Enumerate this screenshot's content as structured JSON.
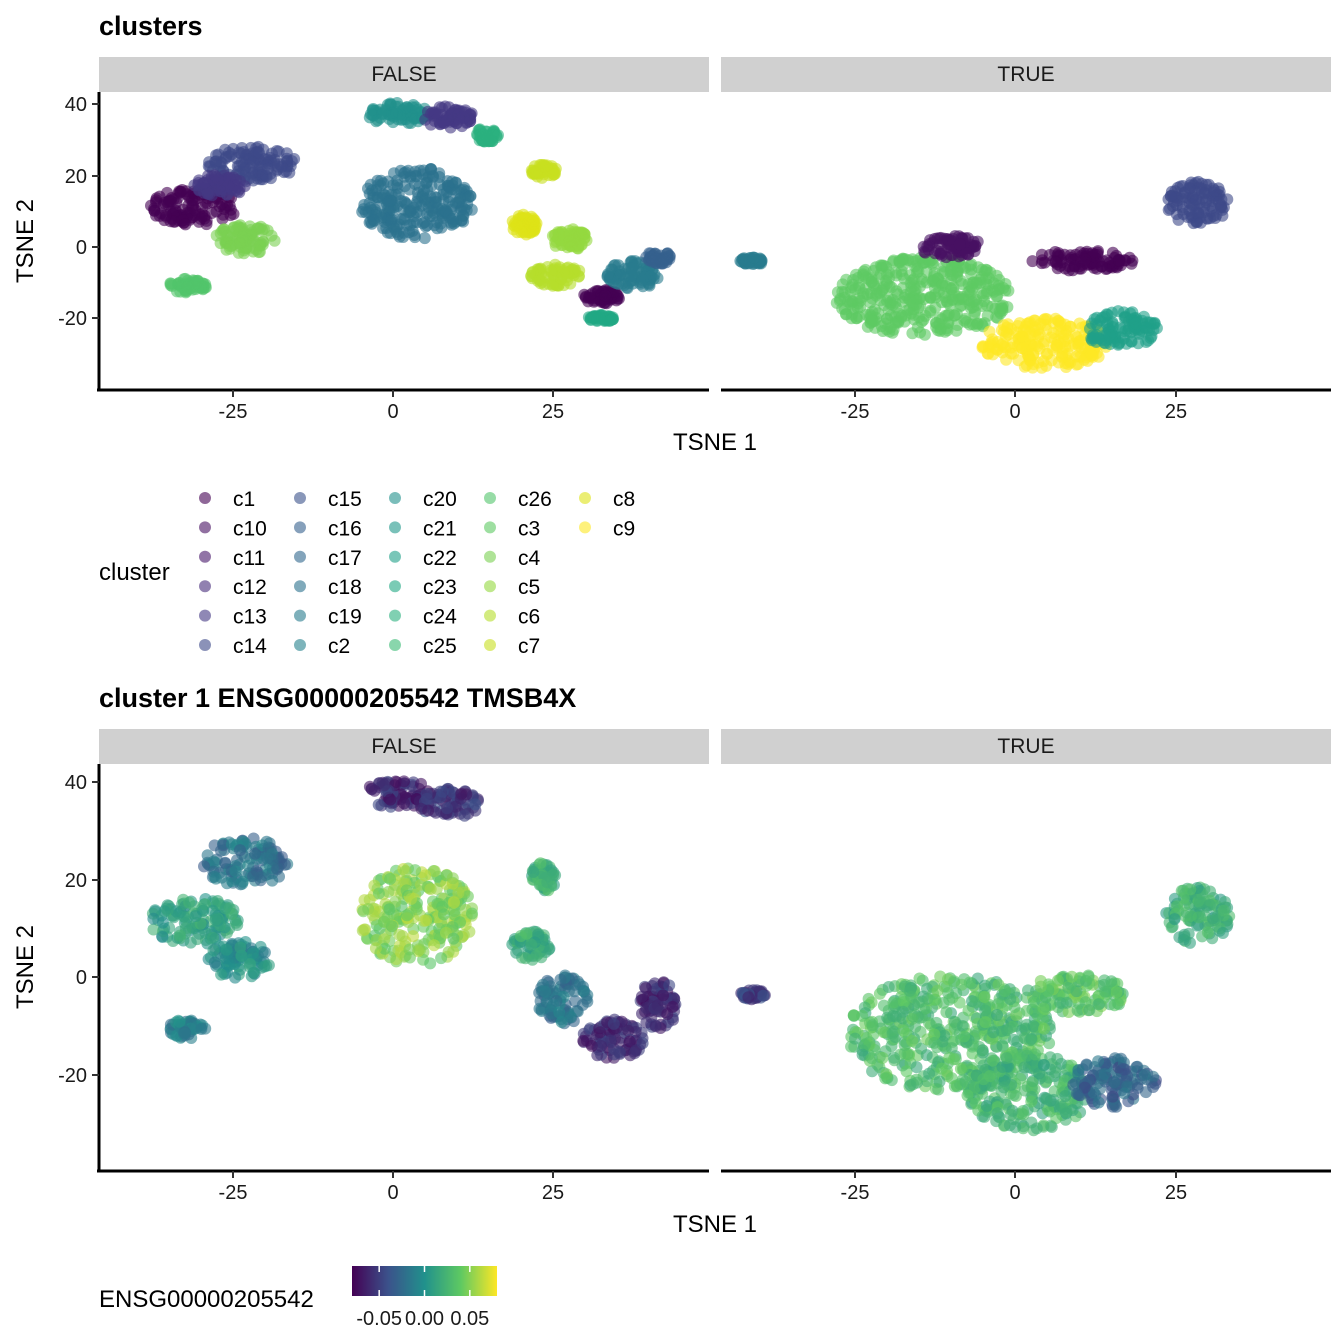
{
  "chart_data": [
    {
      "type": "scatter",
      "title": "clusters",
      "xlabel": "TSNE 1",
      "ylabel": "TSNE 2",
      "xlim": [
        -46,
        50
      ],
      "ylim": [
        -40,
        43
      ],
      "xticks": [
        -25,
        0,
        25
      ],
      "yticks": [
        40,
        20,
        0,
        -20
      ],
      "tick_labels_x": [
        "-25",
        "0",
        "25"
      ],
      "tick_labels_y": [
        "40",
        "20",
        "0",
        "-20"
      ],
      "facets": [
        "FALSE",
        "TRUE"
      ],
      "legend": {
        "title": "cluster",
        "placement": "bottom",
        "entries": [
          "c1",
          "c10",
          "c11",
          "c12",
          "c13",
          "c14",
          "c15",
          "c16",
          "c17",
          "c18",
          "c19",
          "c2",
          "c20",
          "c21",
          "c22",
          "c23",
          "c24",
          "c25",
          "c26",
          "c3",
          "c4",
          "c5",
          "c6",
          "c7",
          "c8",
          "c9"
        ],
        "colors": [
          "#440154",
          "#471063",
          "#48186a",
          "#472d7b",
          "#443983",
          "#3e4989",
          "#3b528b",
          "#35608d",
          "#31688e",
          "#2c728e",
          "#287c8e",
          "#26828e",
          "#21918c",
          "#1f988b",
          "#1fa088",
          "#22a884",
          "#2cb17e",
          "#3bbb75",
          "#51c56a",
          "#5ec962",
          "#7ad151",
          "#95d840",
          "#b5de2b",
          "#c8e020",
          "#dde318",
          "#fde725"
        ]
      },
      "grid": false,
      "clusters": [
        {
          "facet": "FALSE",
          "cx": -31,
          "cy": 11,
          "rx": 7,
          "ry": 5,
          "color": "#440154"
        },
        {
          "facet": "FALSE",
          "cx": -22,
          "cy": 23,
          "rx": 7,
          "ry": 5,
          "color": "#3e4989"
        },
        {
          "facet": "FALSE",
          "cx": -27,
          "cy": 17,
          "rx": 4,
          "ry": 3,
          "color": "#443983"
        },
        {
          "facet": "FALSE",
          "cx": 4,
          "cy": 12,
          "rx": 9,
          "ry": 10,
          "color": "#2c728e"
        },
        {
          "facet": "FALSE",
          "cx": 1,
          "cy": 37,
          "rx": 5,
          "ry": 3,
          "color": "#21918c"
        },
        {
          "facet": "FALSE",
          "cx": 9,
          "cy": 36,
          "rx": 4,
          "ry": 3,
          "color": "#443983"
        },
        {
          "facet": "FALSE",
          "cx": 15,
          "cy": 31,
          "rx": 2,
          "ry": 2,
          "color": "#2cb17e"
        },
        {
          "facet": "FALSE",
          "cx": -23,
          "cy": 2,
          "rx": 5,
          "ry": 4,
          "color": "#7ad151"
        },
        {
          "facet": "FALSE",
          "cx": -32,
          "cy": -11,
          "rx": 3,
          "ry": 2,
          "color": "#51c56a"
        },
        {
          "facet": "FALSE",
          "cx": 24,
          "cy": 21,
          "rx": 2,
          "ry": 2,
          "color": "#c8e020"
        },
        {
          "facet": "FALSE",
          "cx": 21,
          "cy": 6,
          "rx": 2,
          "ry": 3,
          "color": "#dde318"
        },
        {
          "facet": "FALSE",
          "cx": 28,
          "cy": 2,
          "rx": 3,
          "ry": 3,
          "color": "#95d840"
        },
        {
          "facet": "FALSE",
          "cx": 26,
          "cy": -8,
          "rx": 4,
          "ry": 3,
          "color": "#b5de2b"
        },
        {
          "facet": "FALSE",
          "cx": 33,
          "cy": -14,
          "rx": 3,
          "ry": 2,
          "color": "#440154"
        },
        {
          "facet": "FALSE",
          "cx": 38,
          "cy": -8,
          "rx": 4,
          "ry": 4,
          "color": "#287c8e"
        },
        {
          "facet": "FALSE",
          "cx": 42,
          "cy": -3,
          "rx": 2,
          "ry": 2,
          "color": "#35608d"
        },
        {
          "facet": "FALSE",
          "cx": 33,
          "cy": -20,
          "rx": 2,
          "ry": 1,
          "color": "#22a884"
        },
        {
          "facet": "TRUE",
          "cx": -14,
          "cy": -14,
          "rx": 14,
          "ry": 11,
          "color": "#5ec962"
        },
        {
          "facet": "TRUE",
          "cx": 5,
          "cy": -27,
          "rx": 10,
          "ry": 7,
          "color": "#fde725"
        },
        {
          "facet": "TRUE",
          "cx": 17,
          "cy": -23,
          "rx": 6,
          "ry": 5,
          "color": "#1fa088"
        },
        {
          "facet": "TRUE",
          "cx": -10,
          "cy": 0,
          "rx": 5,
          "ry": 3,
          "color": "#471063"
        },
        {
          "facet": "TRUE",
          "cx": 11,
          "cy": -4,
          "rx": 8,
          "ry": 3,
          "color": "#440154"
        },
        {
          "facet": "TRUE",
          "cx": 29,
          "cy": 12,
          "rx": 5,
          "ry": 6,
          "color": "#3e4989"
        },
        {
          "facet": "TRUE",
          "cx": -41,
          "cy": -4,
          "rx": 2,
          "ry": 1,
          "color": "#287c8e"
        }
      ]
    },
    {
      "type": "scatter",
      "title": "cluster 1 ENSG00000205542 TMSB4X",
      "xlabel": "TSNE 1",
      "ylabel": "TSNE 2",
      "xlim": [
        -46,
        50
      ],
      "ylim": [
        -40,
        43
      ],
      "xticks": [
        -25,
        0,
        25
      ],
      "yticks": [
        40,
        20,
        0,
        -20
      ],
      "tick_labels_x": [
        "-25",
        "0",
        "25"
      ],
      "tick_labels_y": [
        "40",
        "20",
        "0",
        "-20"
      ],
      "facets": [
        "FALSE",
        "TRUE"
      ],
      "colorbar": {
        "title": "ENSG00000205542",
        "placement": "bottom",
        "ticks": [
          "-0.05",
          "0.00",
          "0.05"
        ],
        "tick_values": [
          -0.05,
          0.0,
          0.05
        ],
        "range": [
          -0.08,
          0.08
        ],
        "palette": "viridis"
      },
      "grid": false,
      "clusters": [
        {
          "facet": "FALSE",
          "cx": -31,
          "cy": 11,
          "rx": 7,
          "ry": 5,
          "value": 0.01
        },
        {
          "facet": "FALSE",
          "cx": -23,
          "cy": 23,
          "rx": 7,
          "ry": 5,
          "value": -0.02
        },
        {
          "facet": "FALSE",
          "cx": 4,
          "cy": 12,
          "rx": 9,
          "ry": 10,
          "value": 0.05
        },
        {
          "facet": "FALSE",
          "cx": 1,
          "cy": 37,
          "rx": 5,
          "ry": 3,
          "value": -0.06
        },
        {
          "facet": "FALSE",
          "cx": 9,
          "cy": 35,
          "rx": 5,
          "ry": 3,
          "value": -0.055
        },
        {
          "facet": "FALSE",
          "cx": -24,
          "cy": 3,
          "rx": 5,
          "ry": 4,
          "value": 0.0
        },
        {
          "facet": "FALSE",
          "cx": -32,
          "cy": -11,
          "rx": 3,
          "ry": 2,
          "value": -0.01
        },
        {
          "facet": "FALSE",
          "cx": 24,
          "cy": 20,
          "rx": 2,
          "ry": 3,
          "value": 0.02
        },
        {
          "facet": "FALSE",
          "cx": 22,
          "cy": 6,
          "rx": 3,
          "ry": 3,
          "value": 0.02
        },
        {
          "facet": "FALSE",
          "cx": 27,
          "cy": -5,
          "rx": 4,
          "ry": 5,
          "value": -0.02
        },
        {
          "facet": "FALSE",
          "cx": 35,
          "cy": -13,
          "rx": 5,
          "ry": 4,
          "value": -0.06
        },
        {
          "facet": "FALSE",
          "cx": 42,
          "cy": -6,
          "rx": 3,
          "ry": 5,
          "value": -0.06
        },
        {
          "facet": "TRUE",
          "cx": -10,
          "cy": -12,
          "rx": 16,
          "ry": 12,
          "value": 0.03
        },
        {
          "facet": "TRUE",
          "cx": 2,
          "cy": -24,
          "rx": 10,
          "ry": 8,
          "value": 0.025
        },
        {
          "facet": "TRUE",
          "cx": 16,
          "cy": -22,
          "rx": 7,
          "ry": 5,
          "value": -0.03
        },
        {
          "facet": "TRUE",
          "cx": 10,
          "cy": -4,
          "rx": 8,
          "ry": 4,
          "value": 0.035
        },
        {
          "facet": "TRUE",
          "cx": 29,
          "cy": 12,
          "rx": 5,
          "ry": 6,
          "value": 0.02
        },
        {
          "facet": "TRUE",
          "cx": -41,
          "cy": -4,
          "rx": 2,
          "ry": 1,
          "value": -0.05
        }
      ]
    }
  ]
}
